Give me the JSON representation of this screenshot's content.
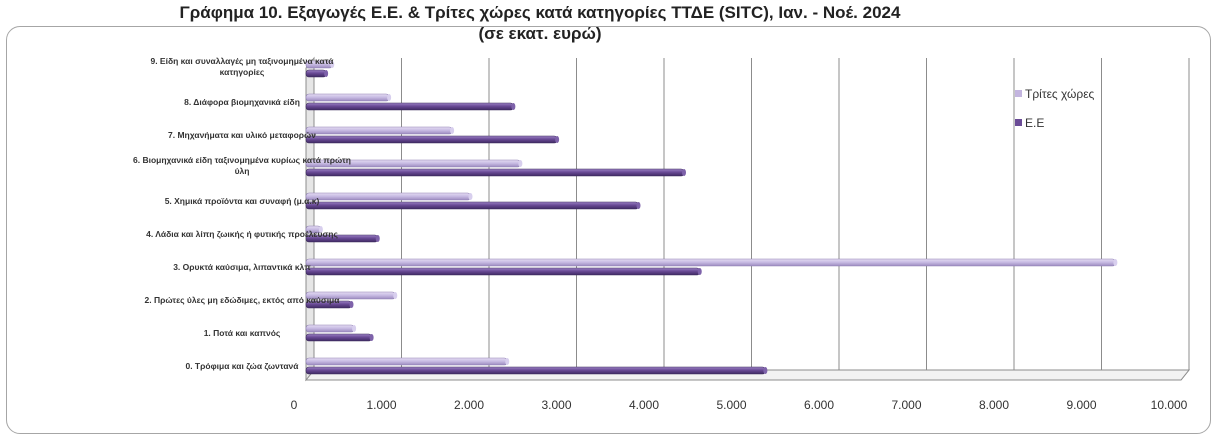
{
  "chart_data": {
    "type": "bar",
    "orientation": "horizontal",
    "title_line1": "Γράφημα 10. Εξαγωγές  Ε.Ε. & Τρίτες χώρες κατά κατηγορίες ΤΤΔΕ (SITC), Ιαν. - Νοέ. 2024",
    "title_line2": "(σε εκατ. ευρώ)",
    "categories": [
      [
        "0. Τρόφιμα και ζώα ζωντανά"
      ],
      [
        "1. Ποτά και καπνός"
      ],
      [
        "2. Πρώτες ύλες μη εδώδιμες, εκτός από καύσιμα"
      ],
      [
        "3. Ορυκτά καύσιμα, λιπαντικά κλπ"
      ],
      [
        "4. Λάδια και λίπη ζωικής ή φυτικής προέλευσης"
      ],
      [
        "5. Χημικά προϊόντα και συναφή (μ.α.κ)"
      ],
      [
        "6. Βιομηχανικά είδη ταξινομημένα κυρίως κατά πρώτη",
        "ύλη"
      ],
      [
        "7. Μηχανήματα και υλικό μεταφορών"
      ],
      [
        "8. Διάφορα βιομηχανικά είδη"
      ],
      [
        "9. Είδη και συναλλαγές μη ταξινομημένα κατά",
        "κατηγορίες"
      ]
    ],
    "series": [
      {
        "name": "Τρίτες χώρες",
        "color": "#c3b5df",
        "values": [
          2300,
          550,
          1020,
          9250,
          170,
          1880,
          2450,
          1670,
          950,
          300
        ]
      },
      {
        "name": "Ε.Ε",
        "color": "#6a4b96",
        "values": [
          5250,
          750,
          520,
          4500,
          820,
          3800,
          4320,
          2870,
          2370,
          230
        ]
      }
    ],
    "xlim": [
      0,
      10000
    ],
    "xticks": [
      "0",
      "1.000",
      "2.000",
      "3.000",
      "4.000",
      "5.000",
      "6.000",
      "7.000",
      "8.000",
      "9.000",
      "10.000"
    ],
    "grid": true,
    "legend_position": "right"
  }
}
